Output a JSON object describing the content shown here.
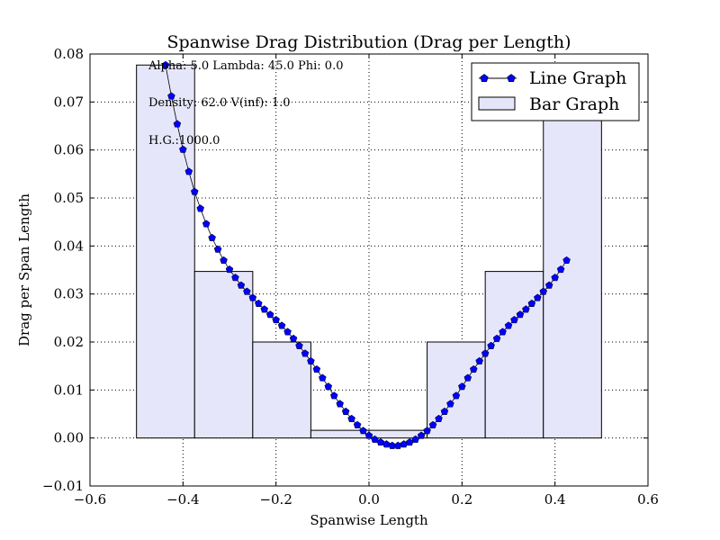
{
  "chart_data": {
    "type": "bar+line",
    "title": "Spanwise Drag Distribution (Drag per Length)",
    "xlabel": "Spanwise Length",
    "ylabel": "Drag per Span Length",
    "xlim": [
      -0.6,
      0.6
    ],
    "ylim": [
      -0.01,
      0.08
    ],
    "xticks": [
      -0.6,
      -0.4,
      -0.2,
      0.0,
      0.2,
      0.4,
      0.6
    ],
    "xtick_labels": [
      "−0.6",
      "−0.4",
      "−0.2",
      "0.0",
      "0.2",
      "0.4",
      "0.6"
    ],
    "yticks": [
      -0.01,
      0.0,
      0.01,
      0.02,
      0.03,
      0.04,
      0.05,
      0.06,
      0.07,
      0.08
    ],
    "ytick_labels": [
      "−0.01",
      "0.00",
      "0.01",
      "0.02",
      "0.03",
      "0.04",
      "0.05",
      "0.06",
      "0.07",
      "0.08"
    ],
    "grid": true,
    "legend_position": "top-right",
    "annotations": [
      "Alpha:  5.0 Lambda: 45.0 Phi:  0.0",
      "Density:  62.0 V(inf):  1.0",
      "H.G.:1000.0"
    ],
    "bar_series": {
      "name": "Bar Graph",
      "color": "#e6e6fa",
      "edge_color": "#000000",
      "bars": [
        {
          "left": -0.5,
          "right": -0.375,
          "value": 0.0777
        },
        {
          "left": -0.375,
          "right": -0.25,
          "value": 0.0347
        },
        {
          "left": -0.25,
          "right": -0.125,
          "value": 0.02
        },
        {
          "left": -0.125,
          "right": 0.0,
          "value": 0.0016
        },
        {
          "left": 0.0,
          "right": 0.125,
          "value": 0.0016
        },
        {
          "left": 0.125,
          "right": 0.25,
          "value": 0.02
        },
        {
          "left": 0.25,
          "right": 0.375,
          "value": 0.0347
        },
        {
          "left": 0.375,
          "right": 0.5,
          "value": 0.0777
        }
      ]
    },
    "line_series": {
      "name": "Line Graph",
      "color": "#0000ff",
      "marker": "pentagon",
      "points": [
        [
          -0.4375,
          0.0777
        ],
        [
          -0.425,
          0.0712
        ],
        [
          -0.4125,
          0.0654
        ],
        [
          -0.4,
          0.0601
        ],
        [
          -0.3875,
          0.0555
        ],
        [
          -0.375,
          0.0513
        ],
        [
          -0.3625,
          0.0478
        ],
        [
          -0.35,
          0.0446
        ],
        [
          -0.3375,
          0.0417
        ],
        [
          -0.325,
          0.0393
        ],
        [
          -0.3125,
          0.037
        ],
        [
          -0.3,
          0.0351
        ],
        [
          -0.2875,
          0.0334
        ],
        [
          -0.275,
          0.0318
        ],
        [
          -0.2625,
          0.0305
        ],
        [
          -0.25,
          0.0292
        ],
        [
          -0.2375,
          0.028
        ],
        [
          -0.225,
          0.0268
        ],
        [
          -0.2125,
          0.0257
        ],
        [
          -0.2,
          0.0246
        ],
        [
          -0.1875,
          0.0234
        ],
        [
          -0.175,
          0.0221
        ],
        [
          -0.1625,
          0.0207
        ],
        [
          -0.15,
          0.0192
        ],
        [
          -0.1375,
          0.0176
        ],
        [
          -0.125,
          0.016
        ],
        [
          -0.1125,
          0.0143
        ],
        [
          -0.1,
          0.0125
        ],
        [
          -0.0875,
          0.0107
        ],
        [
          -0.075,
          0.0088
        ],
        [
          -0.0625,
          0.0071
        ],
        [
          -0.05,
          0.0055
        ],
        [
          -0.0375,
          0.004
        ],
        [
          -0.025,
          0.0027
        ],
        [
          -0.0125,
          0.0015
        ],
        [
          0.0,
          0.0005
        ],
        [
          0.0125,
          -0.0003
        ],
        [
          0.025,
          -0.0009
        ],
        [
          0.0375,
          -0.0013
        ],
        [
          0.05,
          -0.0016
        ],
        [
          0.0625,
          -0.0016
        ],
        [
          0.075,
          -0.0013
        ],
        [
          0.0875,
          -0.0009
        ],
        [
          0.1,
          -0.0003
        ],
        [
          0.1125,
          0.0005
        ],
        [
          0.125,
          0.0015
        ],
        [
          0.1375,
          0.0027
        ],
        [
          0.15,
          0.004
        ],
        [
          0.1625,
          0.0055
        ],
        [
          0.175,
          0.0071
        ],
        [
          0.1875,
          0.0088
        ],
        [
          0.2,
          0.0107
        ],
        [
          0.2125,
          0.0125
        ],
        [
          0.225,
          0.0143
        ],
        [
          0.2375,
          0.016
        ],
        [
          0.25,
          0.0176
        ],
        [
          0.2625,
          0.0192
        ],
        [
          0.275,
          0.0207
        ],
        [
          0.2875,
          0.0221
        ],
        [
          0.3,
          0.0234
        ],
        [
          0.3125,
          0.0246
        ],
        [
          0.325,
          0.0257
        ],
        [
          0.3375,
          0.0268
        ],
        [
          0.35,
          0.028
        ],
        [
          0.3625,
          0.0292
        ],
        [
          0.375,
          0.0305
        ],
        [
          0.3875,
          0.0318
        ],
        [
          0.4,
          0.0334
        ],
        [
          0.4125,
          0.0351
        ],
        [
          0.425,
          0.037
        ]
      ]
    }
  }
}
